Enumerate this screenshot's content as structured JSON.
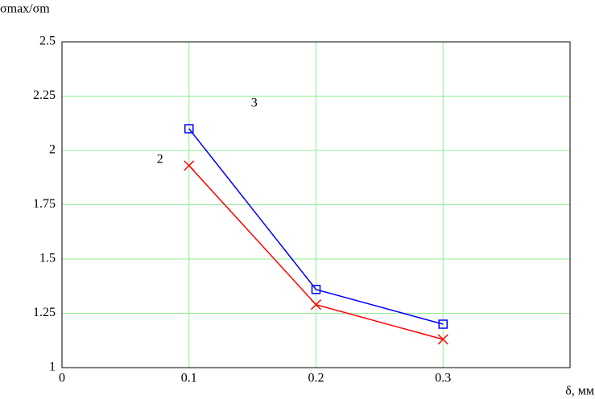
{
  "chart_data": {
    "type": "line",
    "y_label": "σmax/σm",
    "x_label": "δ, мм",
    "x": [
      0.1,
      0.2,
      0.3
    ],
    "series": [
      {
        "name": "3",
        "color": "#0000ff",
        "marker": "square",
        "values": [
          2.1,
          1.36,
          1.2
        ]
      },
      {
        "name": "2",
        "color": "#ff0000",
        "marker": "cross",
        "values": [
          1.93,
          1.29,
          1.13
        ]
      }
    ],
    "xlim": [
      0,
      0.4
    ],
    "xticks": [
      0,
      0.1,
      0.2,
      0.3
    ],
    "ylim": [
      1,
      2.5
    ],
    "yticks": [
      1,
      1.25,
      1.5,
      1.75,
      2,
      2.25,
      2.5
    ],
    "grid": true,
    "grid_color": "#90ee90"
  }
}
